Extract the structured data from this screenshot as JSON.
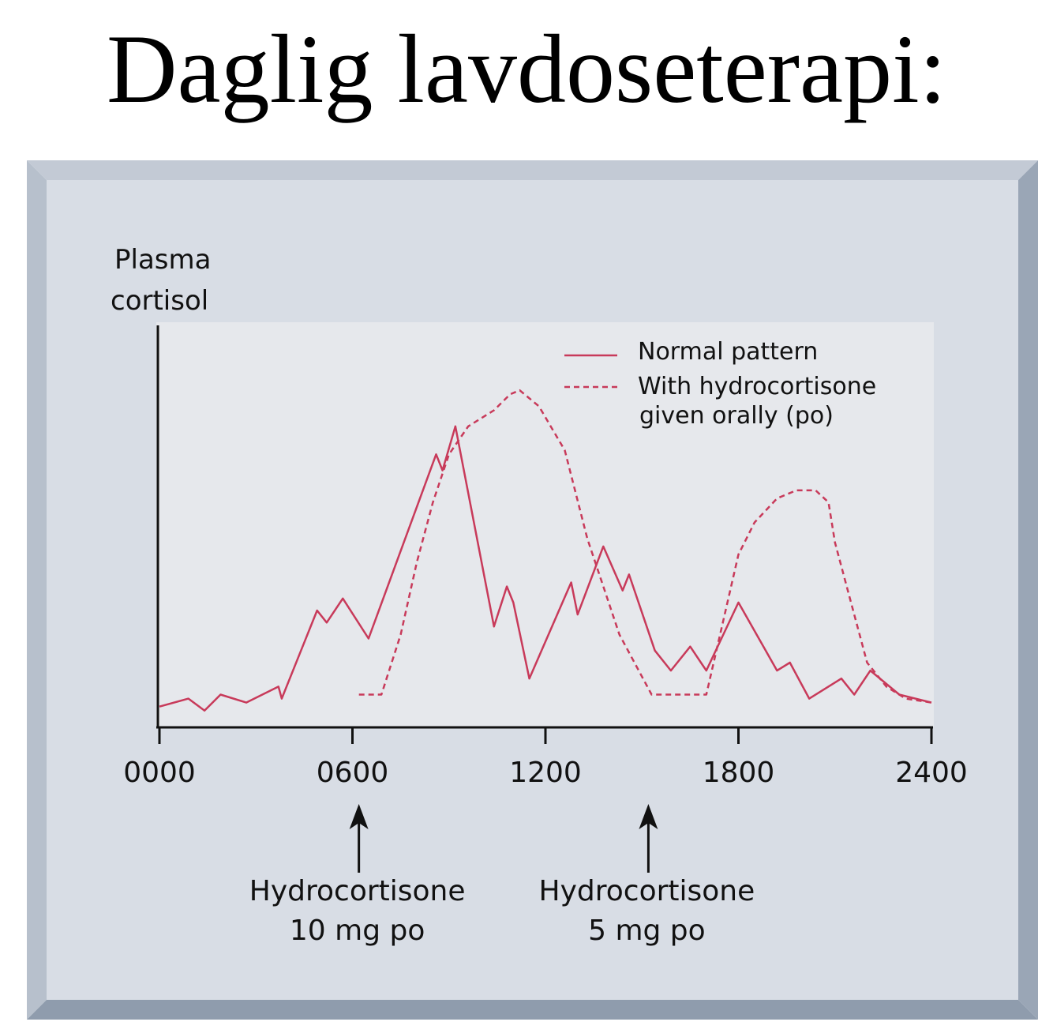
{
  "title": "Daglig lavdoseterapi:",
  "colors": {
    "frame_outer": "#a9b4c3",
    "frame_inner": "#d8dde5",
    "plot_bg": "#e6e8ec",
    "series": "#c83a5a",
    "axis": "#111111"
  },
  "chart_data": {
    "type": "line",
    "ylabel": [
      "Plasma",
      "cortisol"
    ],
    "xlim": [
      0,
      2400
    ],
    "x_ticks": [
      "0000",
      "0600",
      "1200",
      "1800",
      "2400"
    ],
    "grid": false,
    "legend": "top-right",
    "series": [
      {
        "name": "Normal pattern",
        "style": "solid",
        "points": [
          [
            0,
            0.04
          ],
          [
            90,
            0.06
          ],
          [
            140,
            0.03
          ],
          [
            190,
            0.07
          ],
          [
            270,
            0.05
          ],
          [
            370,
            0.09
          ],
          [
            380,
            0.06
          ],
          [
            490,
            0.28
          ],
          [
            520,
            0.25
          ],
          [
            570,
            0.31
          ],
          [
            650,
            0.21
          ],
          [
            860,
            0.67
          ],
          [
            880,
            0.63
          ],
          [
            920,
            0.74
          ],
          [
            1040,
            0.24
          ],
          [
            1080,
            0.34
          ],
          [
            1100,
            0.3
          ],
          [
            1150,
            0.11
          ],
          [
            1280,
            0.35
          ],
          [
            1300,
            0.27
          ],
          [
            1380,
            0.44
          ],
          [
            1440,
            0.33
          ],
          [
            1460,
            0.37
          ],
          [
            1540,
            0.18
          ],
          [
            1590,
            0.13
          ],
          [
            1650,
            0.19
          ],
          [
            1700,
            0.13
          ],
          [
            1800,
            0.3
          ],
          [
            1920,
            0.13
          ],
          [
            1960,
            0.15
          ],
          [
            2020,
            0.06
          ],
          [
            2120,
            0.11
          ],
          [
            2160,
            0.07
          ],
          [
            2210,
            0.13
          ],
          [
            2300,
            0.07
          ],
          [
            2400,
            0.05
          ]
        ]
      },
      {
        "name": "With hydrocortisone given orally (po)",
        "style": "dashed",
        "points": [
          [
            620,
            0.07
          ],
          [
            690,
            0.07
          ],
          [
            750,
            0.22
          ],
          [
            800,
            0.4
          ],
          [
            850,
            0.55
          ],
          [
            900,
            0.67
          ],
          [
            960,
            0.74
          ],
          [
            1040,
            0.78
          ],
          [
            1090,
            0.82
          ],
          [
            1120,
            0.83
          ],
          [
            1180,
            0.79
          ],
          [
            1260,
            0.68
          ],
          [
            1330,
            0.46
          ],
          [
            1430,
            0.22
          ],
          [
            1530,
            0.07
          ],
          [
            1600,
            0.07
          ],
          [
            1700,
            0.07
          ],
          [
            1800,
            0.42
          ],
          [
            1850,
            0.5
          ],
          [
            1920,
            0.56
          ],
          [
            1980,
            0.58
          ],
          [
            2040,
            0.58
          ],
          [
            2080,
            0.55
          ],
          [
            2100,
            0.45
          ],
          [
            2150,
            0.3
          ],
          [
            2200,
            0.15
          ],
          [
            2260,
            0.09
          ],
          [
            2320,
            0.06
          ],
          [
            2400,
            0.05
          ]
        ]
      }
    ],
    "annotations": [
      {
        "x": 620,
        "lines": [
          "Hydrocortisone",
          "10 mg po"
        ]
      },
      {
        "x": 1520,
        "lines": [
          "Hydrocortisone",
          "5 mg po"
        ]
      }
    ]
  }
}
